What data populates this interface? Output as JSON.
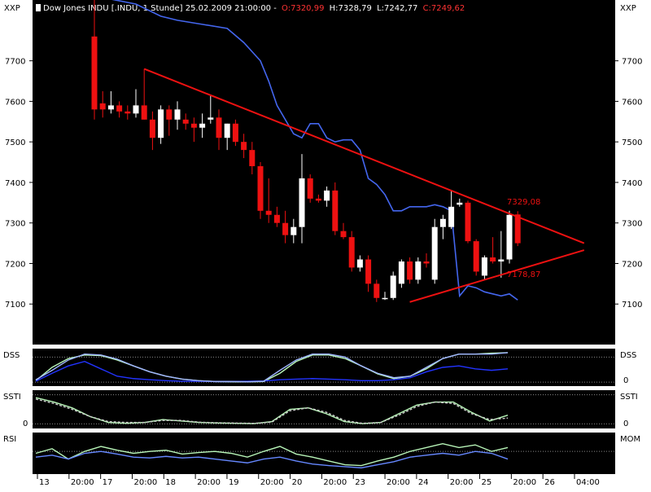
{
  "header": {
    "title": "Dow Jones INDU [.INDU, 1 Stunde] 25.02.2009 21:00:00 -",
    "open": "O:7320,99",
    "high": "H:7328,79",
    "low": "L:7242,77",
    "close": "C:7249,62",
    "axis_label": "XXP"
  },
  "panels": {
    "dss": {
      "left_label": "DSS",
      "right_label": "DSS",
      "zero_label": "0"
    },
    "ssti": {
      "left_label": "SSTI",
      "right_label": "SSTI",
      "zero_label": "0"
    },
    "rsi": {
      "left_label": "RSI",
      "right_label": "MOM"
    }
  },
  "annotations": {
    "upper_trendline_value": "7329,08",
    "lower_trendline_value": "7178,87"
  },
  "colors": {
    "background": "#000000",
    "bull": "#ffffff",
    "bear": "#ee1111",
    "trendline": "#ee1111",
    "overlay_line": "#4466ee",
    "osc_light": "#b8f5b8",
    "osc_blue": "#2233ff",
    "osc_pale": "#9fb4ff"
  },
  "chart_data": [
    {
      "type": "candlestick",
      "title": "Dow Jones INDU [.INDU, 1 Stunde] 25.02.2009 21:00:00",
      "ylim": [
        7000,
        7850
      ],
      "yticks": [
        7100,
        7200,
        7300,
        7400,
        7500,
        7600,
        7700
      ],
      "x_tick_labels": [
        "13",
        "20:00",
        "17",
        "20:00",
        "18",
        "20:00",
        "19",
        "20:00",
        "20",
        "20:00",
        "23",
        "20:00",
        "24",
        "20:00",
        "25",
        "20:00",
        "26",
        "04:00"
      ],
      "candles": [
        {
          "o": 7760,
          "h": 7850,
          "l": 7555,
          "c": 7580
        },
        {
          "o": 7595,
          "h": 7625,
          "l": 7560,
          "c": 7580
        },
        {
          "o": 7580,
          "h": 7625,
          "l": 7570,
          "c": 7590
        },
        {
          "o": 7590,
          "h": 7600,
          "l": 7560,
          "c": 7575
        },
        {
          "o": 7575,
          "h": 7590,
          "l": 7555,
          "c": 7570
        },
        {
          "o": 7570,
          "h": 7630,
          "l": 7560,
          "c": 7590
        },
        {
          "o": 7590,
          "h": 7680,
          "l": 7555,
          "c": 7555
        },
        {
          "o": 7555,
          "h": 7575,
          "l": 7480,
          "c": 7510
        },
        {
          "o": 7510,
          "h": 7590,
          "l": 7495,
          "c": 7580
        },
        {
          "o": 7580,
          "h": 7590,
          "l": 7515,
          "c": 7555
        },
        {
          "o": 7555,
          "h": 7600,
          "l": 7530,
          "c": 7580
        },
        {
          "o": 7555,
          "h": 7570,
          "l": 7530,
          "c": 7545
        },
        {
          "o": 7545,
          "h": 7560,
          "l": 7500,
          "c": 7535
        },
        {
          "o": 7535,
          "h": 7570,
          "l": 7510,
          "c": 7545
        },
        {
          "o": 7555,
          "h": 7615,
          "l": 7545,
          "c": 7560
        },
        {
          "o": 7560,
          "h": 7580,
          "l": 7480,
          "c": 7510
        },
        {
          "o": 7510,
          "h": 7545,
          "l": 7480,
          "c": 7545
        },
        {
          "o": 7545,
          "h": 7555,
          "l": 7490,
          "c": 7500
        },
        {
          "o": 7500,
          "h": 7520,
          "l": 7460,
          "c": 7480
        },
        {
          "o": 7480,
          "h": 7500,
          "l": 7420,
          "c": 7440
        },
        {
          "o": 7440,
          "h": 7450,
          "l": 7310,
          "c": 7330
        },
        {
          "o": 7330,
          "h": 7410,
          "l": 7300,
          "c": 7320
        },
        {
          "o": 7320,
          "h": 7340,
          "l": 7290,
          "c": 7300
        },
        {
          "o": 7300,
          "h": 7330,
          "l": 7250,
          "c": 7270
        },
        {
          "o": 7270,
          "h": 7310,
          "l": 7250,
          "c": 7290
        },
        {
          "o": 7290,
          "h": 7470,
          "l": 7250,
          "c": 7410
        },
        {
          "o": 7410,
          "h": 7420,
          "l": 7350,
          "c": 7360
        },
        {
          "o": 7360,
          "h": 7370,
          "l": 7350,
          "c": 7355
        },
        {
          "o": 7355,
          "h": 7390,
          "l": 7340,
          "c": 7380
        },
        {
          "o": 7380,
          "h": 7400,
          "l": 7270,
          "c": 7280
        },
        {
          "o": 7280,
          "h": 7300,
          "l": 7260,
          "c": 7265
        },
        {
          "o": 7265,
          "h": 7280,
          "l": 7180,
          "c": 7190
        },
        {
          "o": 7190,
          "h": 7220,
          "l": 7180,
          "c": 7210
        },
        {
          "o": 7210,
          "h": 7220,
          "l": 7130,
          "c": 7150
        },
        {
          "o": 7150,
          "h": 7160,
          "l": 7105,
          "c": 7115
        },
        {
          "o": 7115,
          "h": 7130,
          "l": 7110,
          "c": 7115
        },
        {
          "o": 7115,
          "h": 7180,
          "l": 7110,
          "c": 7170
        },
        {
          "o": 7150,
          "h": 7210,
          "l": 7140,
          "c": 7205
        },
        {
          "o": 7205,
          "h": 7215,
          "l": 7150,
          "c": 7160
        },
        {
          "o": 7160,
          "h": 7215,
          "l": 7150,
          "c": 7205
        },
        {
          "o": 7205,
          "h": 7225,
          "l": 7190,
          "c": 7200
        },
        {
          "o": 7160,
          "h": 7310,
          "l": 7150,
          "c": 7290
        },
        {
          "o": 7290,
          "h": 7320,
          "l": 7260,
          "c": 7310
        },
        {
          "o": 7290,
          "h": 7380,
          "l": 7285,
          "c": 7340
        },
        {
          "o": 7345,
          "h": 7360,
          "l": 7340,
          "c": 7350
        },
        {
          "o": 7350,
          "h": 7355,
          "l": 7250,
          "c": 7255
        },
        {
          "o": 7255,
          "h": 7260,
          "l": 7170,
          "c": 7180
        },
        {
          "o": 7170,
          "h": 7220,
          "l": 7160,
          "c": 7215
        },
        {
          "o": 7215,
          "h": 7265,
          "l": 7200,
          "c": 7205
        },
        {
          "o": 7205,
          "h": 7280,
          "l": 7165,
          "c": 7210
        },
        {
          "o": 7210,
          "h": 7330,
          "l": 7200,
          "c": 7320
        },
        {
          "o": 7321,
          "h": 7329,
          "l": 7243,
          "c": 7250
        }
      ],
      "overlay_line": [
        {
          "i": 0,
          "v": 7860
        },
        {
          "i": 5,
          "v": 7840
        },
        {
          "i": 8,
          "v": 7810
        },
        {
          "i": 10,
          "v": 7800
        },
        {
          "i": 13,
          "v": 7790
        },
        {
          "i": 16,
          "v": 7780
        },
        {
          "i": 18,
          "v": 7745
        },
        {
          "i": 20,
          "v": 7700
        },
        {
          "i": 21,
          "v": 7650
        },
        {
          "i": 22,
          "v": 7590
        },
        {
          "i": 24,
          "v": 7520
        },
        {
          "i": 25,
          "v": 7510
        },
        {
          "i": 26,
          "v": 7545
        },
        {
          "i": 27,
          "v": 7545
        },
        {
          "i": 28,
          "v": 7510
        },
        {
          "i": 29,
          "v": 7500
        },
        {
          "i": 30,
          "v": 7505
        },
        {
          "i": 31,
          "v": 7505
        },
        {
          "i": 32,
          "v": 7480
        },
        {
          "i": 33,
          "v": 7410
        },
        {
          "i": 34,
          "v": 7395
        },
        {
          "i": 35,
          "v": 7370
        },
        {
          "i": 36,
          "v": 7330
        },
        {
          "i": 37,
          "v": 7330
        },
        {
          "i": 38,
          "v": 7340
        },
        {
          "i": 39,
          "v": 7340
        },
        {
          "i": 40,
          "v": 7340
        },
        {
          "i": 41,
          "v": 7345
        },
        {
          "i": 42,
          "v": 7340
        },
        {
          "i": 43,
          "v": 7330
        },
        {
          "i": 44,
          "v": 7120
        },
        {
          "i": 45,
          "v": 7145
        },
        {
          "i": 46,
          "v": 7140
        },
        {
          "i": 47,
          "v": 7130
        },
        {
          "i": 48,
          "v": 7125
        },
        {
          "i": 49,
          "v": 7120
        },
        {
          "i": 50,
          "v": 7125
        },
        {
          "i": 51,
          "v": 7110
        }
      ],
      "trendlines": [
        {
          "name": "upper",
          "x1": 6,
          "y1": 7680,
          "x2": 59,
          "y2": 7250
        },
        {
          "name": "lower",
          "x1": 38,
          "y1": 7105,
          "x2": 59,
          "y2": 7233
        }
      ]
    },
    {
      "type": "line",
      "name": "DSS",
      "ylim": [
        -8,
        108
      ],
      "reference_levels": [
        0,
        85
      ],
      "series": [
        {
          "color": "#b8f5b8",
          "values": [
            5,
            50,
            80,
            92,
            90,
            75,
            55,
            35,
            20,
            10,
            5,
            2,
            1,
            1,
            2,
            30,
            70,
            92,
            92,
            80,
            55,
            28,
            12,
            20,
            45,
            80,
            95,
            95,
            98,
            100
          ]
        },
        {
          "color": "#2233ff",
          "values": [
            3,
            30,
            55,
            70,
            45,
            20,
            12,
            8,
            5,
            3,
            3,
            2,
            2,
            3,
            4,
            8,
            10,
            12,
            10,
            8,
            5,
            5,
            8,
            15,
            35,
            50,
            55,
            45,
            40,
            45
          ]
        },
        {
          "color": "#9fb4ff",
          "values": [
            8,
            40,
            75,
            95,
            92,
            78,
            55,
            35,
            20,
            10,
            5,
            2,
            2,
            1,
            3,
            40,
            75,
            95,
            95,
            85,
            55,
            30,
            15,
            20,
            50,
            80,
            95,
            95,
            95,
            100
          ]
        }
      ]
    },
    {
      "type": "line",
      "name": "SSTI",
      "ylim": [
        -10,
        110
      ],
      "reference_levels": [
        0,
        100
      ],
      "series": [
        {
          "color": "#b8f5b8",
          "values": [
            90,
            75,
            55,
            25,
            5,
            2,
            5,
            15,
            10,
            5,
            3,
            2,
            1,
            8,
            50,
            55,
            35,
            8,
            1,
            5,
            35,
            65,
            75,
            75,
            40,
            10,
            30
          ]
        },
        {
          "color": "#cccccc",
          "values": [
            85,
            70,
            50,
            25,
            8,
            5,
            5,
            12,
            12,
            6,
            4,
            3,
            2,
            6,
            45,
            55,
            40,
            12,
            2,
            5,
            30,
            60,
            75,
            70,
            35,
            15,
            20
          ]
        }
      ]
    },
    {
      "type": "line",
      "name": "RSI",
      "ylim": [
        0,
        100
      ],
      "reference_levels": [
        55
      ],
      "series": [
        {
          "color": "#b8f5b8",
          "values": [
            50,
            62,
            35,
            55,
            68,
            58,
            50,
            55,
            58,
            48,
            52,
            55,
            50,
            40,
            55,
            68,
            48,
            40,
            30,
            20,
            18,
            30,
            40,
            55,
            65,
            75,
            65,
            72,
            55,
            65
          ]
        },
        {
          "color": "#6688ff",
          "values": [
            40,
            45,
            35,
            50,
            55,
            48,
            40,
            38,
            42,
            38,
            40,
            35,
            30,
            25,
            35,
            40,
            30,
            22,
            18,
            15,
            12,
            20,
            28,
            40,
            45,
            50,
            45,
            55,
            50,
            35
          ]
        }
      ]
    }
  ]
}
